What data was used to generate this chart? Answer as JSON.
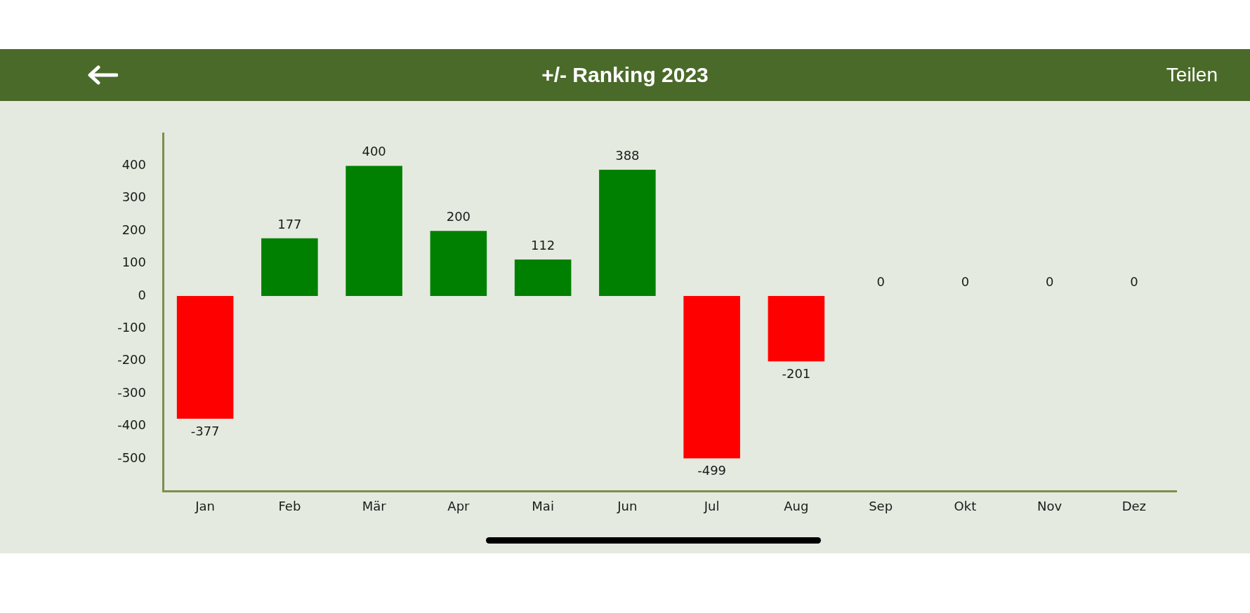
{
  "chart_data": {
    "type": "bar",
    "title": "+/- Ranking 2023",
    "categories": [
      "Jan",
      "Feb",
      "Mär",
      "Apr",
      "Mai",
      "Jun",
      "Jul",
      "Aug",
      "Sep",
      "Okt",
      "Nov",
      "Dez"
    ],
    "values": [
      -377,
      177,
      400,
      200,
      112,
      388,
      -499,
      -201,
      0,
      0,
      0,
      0
    ],
    "colors": [
      "#ff0000",
      "#008000",
      "#008000",
      "#008000",
      "#008000",
      "#008000",
      "#ff0000",
      "#ff0000",
      "#808080",
      "#808080",
      "#808080",
      "#808080"
    ],
    "ylim": [
      -600,
      500
    ],
    "yticks": [
      -500,
      -400,
      -300,
      -200,
      -100,
      0,
      100,
      200,
      300,
      400
    ],
    "data_labels": true,
    "grid": false,
    "annotations": [
      "Teilen"
    ]
  }
}
